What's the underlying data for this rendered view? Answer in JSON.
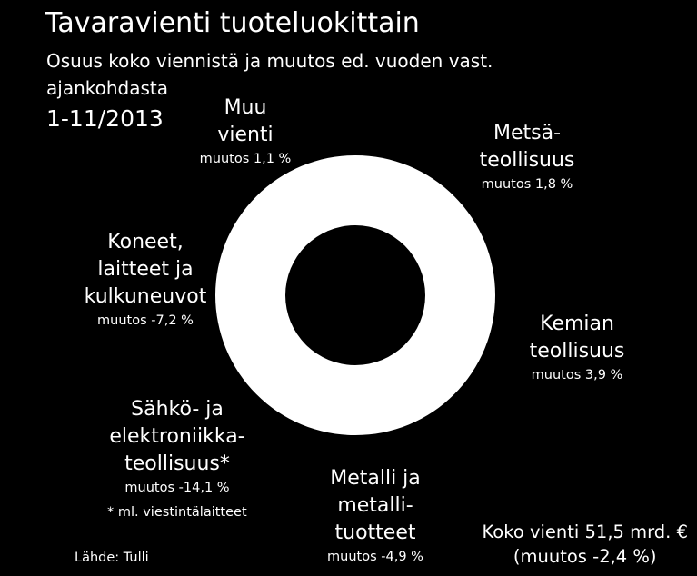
{
  "header": {
    "title": "Tavaravienti tuoteluokittain",
    "subtitle": "Osuus koko viennistä ja muutos ed. vuoden vast. ajankohdasta",
    "period": "1-11/2013"
  },
  "chart_data": {
    "type": "pie",
    "title": "Tavaravienti tuoteluokittain",
    "subtitle": "Osuus koko viennistä ja muutos ed. vuoden vast. ajankohdasta",
    "period": "1-11/2013",
    "categories": [
      {
        "lines": [
          "Muu",
          "vienti"
        ],
        "change_label": "muutos 1,1 %",
        "change_pct": 1.1
      },
      {
        "lines": [
          "Metsä-",
          "teollisuus"
        ],
        "change_label": "muutos 1,8 %",
        "change_pct": 1.8
      },
      {
        "lines": [
          "Kemian",
          "teollisuus"
        ],
        "change_label": "muutos 3,9 %",
        "change_pct": 3.9
      },
      {
        "lines": [
          "Metalli ja",
          "metalli-",
          "tuotteet"
        ],
        "change_label": "muutos -4,9 %",
        "change_pct": -4.9
      },
      {
        "lines": [
          "Sähkö- ja",
          "elektroniikka-",
          "teollisuus*"
        ],
        "change_label": "muutos -14,1 %",
        "change_pct": -14.1
      },
      {
        "lines": [
          "Koneet,",
          "laitteet ja",
          "kulkuneuvot"
        ],
        "change_label": "muutos -7,2 %",
        "change_pct": -7.2
      }
    ],
    "colors": {
      "background": "#000000",
      "ring": "#ffffff",
      "text": "#ffffff"
    },
    "footnote": "* ml. viestintälaitteet",
    "source": "Lähde: Tulli",
    "total_line1": "Koko vienti 51,5 mrd. €",
    "total_line2": "(muutos -2,4 %)",
    "total_value": 51.5,
    "total_change_pct": -2.4
  }
}
